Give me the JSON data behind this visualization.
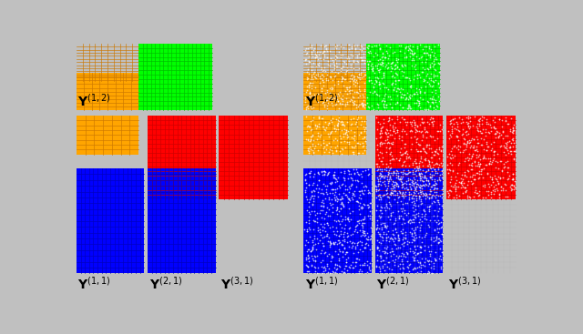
{
  "bg_color": "#c0c0c0",
  "green_color": "#00ff00",
  "orange_color": "#ffa500",
  "red_color": "#ff0000",
  "blue_color": "#0000ff",
  "grid_line_color_green": "#00bb00",
  "grid_line_color_orange": "#cc7700",
  "grid_line_color_red": "#cc0000",
  "grid_line_color_blue": "#0000bb",
  "fig_bg": "#c0c0c0"
}
